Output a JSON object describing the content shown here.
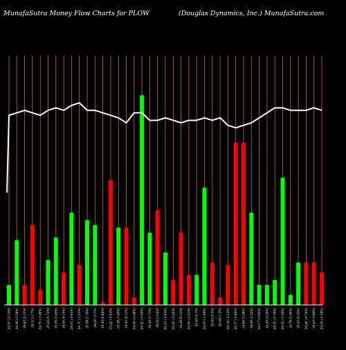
{
  "header": {
    "left_title": "MunafaSutra  Money Flow  Charts for PLOW",
    "right_title": "(Douglas Dynamics,  Inc.) MunafaSutra.com"
  },
  "colors": {
    "background": "#000000",
    "up": "#00ff00",
    "down": "#ff0000",
    "grid": "#c8781e",
    "baseline": "#ffffff",
    "line": "#ffffff"
  },
  "chart_data": {
    "type": "bar",
    "grid": "vertical",
    "categories": [
      "24.57 (-0.73%)",
      "24.68 (-0.58%)",
      "24.83 (2.15%)",
      "24.31 (-1.7%)",
      "24.73 (-1.98%)",
      "25.23 (0.72%)",
      "25.05 (1.65%)",
      "24.64 (0.14%)",
      "24.61 (-0.43%)",
      "24.71 (-1.51%)",
      "25.09 (1.76%)",
      "24.65 (-2.7%)",
      "25.34 (0.48%)",
      "25.22 (-0.63%)",
      "25.38 (1.84%)",
      "24.92 (2.13%)",
      "24.40 (-0.08%)",
      "24.42 (-0.04%)",
      "24.43 (1.71%)",
      "24.02 (-0.8%)",
      "24.21 (-0.45%)",
      "24.32 (-0.26%)",
      "24.38 (0.12%)",
      "24.35 (-0.21%)",
      "24.40 (0.7%)",
      "24.23 (-1.49%)",
      "24.60 (0.5%)",
      "24.48 (1.2%)",
      "24.19 (-2.33%)",
      "24.77 (-0.46%)",
      "24.88 (1.58%)",
      "24.49 (1.32%)",
      "24.17 (-0.96%)",
      "24.40 (0.29%)",
      "24.33 (-0.79%)",
      "24.52 (-1.04%)",
      "24.78 (1.06%)",
      "24.52 (0.33%)",
      "24.44 (-0.74%)",
      "24.62 (1.89%)",
      "24.16 (-0.18%)"
    ],
    "directions": [
      "up",
      "up",
      "down",
      "down",
      "down",
      "up",
      "up",
      "down",
      "up",
      "down",
      "up",
      "up",
      "down",
      "down",
      "up",
      "down",
      "down",
      "up",
      "up",
      "down",
      "up",
      "down",
      "down",
      "down",
      "up",
      "up",
      "down",
      "down",
      "down",
      "down",
      "down",
      "up",
      "up",
      "up",
      "up",
      "up",
      "up",
      "up",
      "down",
      "down",
      "down"
    ],
    "values": [
      8,
      26,
      8,
      32,
      6,
      18,
      27,
      13,
      37,
      16,
      34,
      32,
      1,
      50,
      31,
      31,
      3,
      84,
      29,
      38,
      21,
      10,
      29,
      12,
      12,
      47,
      17,
      3,
      16,
      65,
      65,
      37,
      8,
      8,
      10,
      51,
      4,
      17,
      17,
      17,
      13
    ],
    "price_line": [
      76,
      77,
      78,
      77,
      76,
      78,
      79,
      78,
      80,
      81,
      78,
      78,
      77,
      76,
      75,
      73,
      77,
      77,
      74,
      74,
      75,
      74,
      73,
      74,
      74,
      75,
      74,
      75,
      72,
      71,
      72,
      73,
      75,
      77,
      79,
      79,
      78,
      78,
      78,
      79,
      78
    ],
    "price_start": 45,
    "ylim": [
      0,
      100
    ],
    "title": "MunafaSutra  Money Flow  Charts for PLOW",
    "xlabel": "",
    "ylabel": ""
  }
}
